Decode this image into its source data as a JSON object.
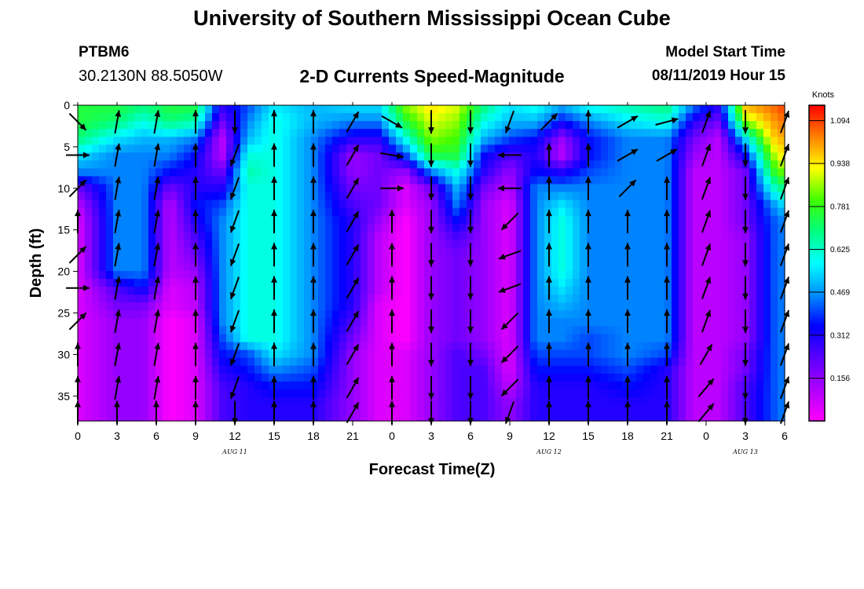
{
  "header": {
    "title": "University of Southern Mississippi Ocean Cube",
    "station_id": "PTBM6",
    "station_coords": "30.2130N 88.5050W",
    "start_label": "Model Start Time",
    "start_value": "08/11/2019 Hour 15"
  },
  "footer": {
    "title": "University of Southern Mississippi Ocean Cube"
  },
  "chart_data": {
    "type": "heatmap",
    "title": "2-D Currents Speed-Magnitude",
    "xlabel": "Forecast Time(Z)",
    "ylabel": "Depth (ft)",
    "x_ticks": [
      "0",
      "3",
      "6",
      "9",
      "12",
      "15",
      "18",
      "21",
      "0",
      "3",
      "6",
      "9",
      "12",
      "15",
      "18",
      "21",
      "0",
      "3",
      "6"
    ],
    "x_tick_hours": [
      0,
      3,
      6,
      9,
      12,
      15,
      18,
      21,
      24,
      27,
      30,
      33,
      36,
      39,
      42,
      45,
      48,
      51,
      54
    ],
    "date_labels": [
      {
        "text": "AUG 11",
        "hour": 12
      },
      {
        "text": "AUG 12",
        "hour": 36
      },
      {
        "text": "AUG 13",
        "hour": 51
      }
    ],
    "y_ticks": [
      0,
      5,
      10,
      15,
      20,
      25,
      30,
      35
    ],
    "xlim": [
      0,
      54
    ],
    "ylim": [
      0,
      38
    ],
    "y_inverted": true,
    "colorbar": {
      "unit": "Knots",
      "ticks": [
        "0.156",
        "0.312",
        "0.469",
        "0.625",
        "0.781",
        "0.938",
        "1.094"
      ],
      "tick_values": [
        0.156,
        0.312,
        0.469,
        0.625,
        0.781,
        0.938,
        1.094
      ],
      "range": [
        0,
        1.15
      ],
      "colors": [
        "#ff00ff",
        "#b000ff",
        "#5a00ff",
        "#0000ff",
        "#0090ff",
        "#00ffff",
        "#00ff80",
        "#40ff00",
        "#ffff00",
        "#ff8000",
        "#ff0000"
      ]
    },
    "depth_rows": [
      0,
      2,
      4,
      6,
      8,
      10,
      12,
      14,
      16,
      18,
      20,
      22,
      24,
      26,
      28,
      30,
      32,
      34,
      36,
      38
    ],
    "speed_columns": [
      {
        "hour": 0,
        "speed": [
          0.75,
          0.75,
          0.7,
          0.55,
          0.45,
          0.2,
          0.1,
          0.05,
          0.05,
          0.05,
          0.05,
          0.05,
          0.05,
          0.05,
          0.05,
          0.05,
          0.05,
          0.05,
          0.05,
          0.05
        ]
      },
      {
        "hour": 3,
        "speed": [
          0.75,
          0.7,
          0.55,
          0.45,
          0.45,
          0.45,
          0.45,
          0.45,
          0.45,
          0.45,
          0.45,
          0.25,
          0.2,
          0.15,
          0.15,
          0.15,
          0.15,
          0.15,
          0.15,
          0.15
        ]
      },
      {
        "hour": 5,
        "speed": [
          0.7,
          0.6,
          0.5,
          0.45,
          0.45,
          0.45,
          0.45,
          0.45,
          0.45,
          0.45,
          0.45,
          0.35,
          0.2,
          0.15,
          0.15,
          0.15,
          0.15,
          0.15,
          0.15,
          0.15
        ]
      },
      {
        "hour": 7,
        "speed": [
          0.75,
          0.7,
          0.5,
          0.45,
          0.35,
          0.2,
          0.1,
          0.1,
          0.1,
          0.1,
          0.1,
          0.05,
          0.05,
          0.0,
          0.0,
          0.0,
          0.0,
          0.0,
          0.0,
          0.0
        ]
      },
      {
        "hour": 9,
        "speed": [
          0.75,
          0.65,
          0.45,
          0.35,
          0.3,
          0.3,
          0.35,
          0.3,
          0.25,
          0.2,
          0.15,
          0.1,
          0.1,
          0.05,
          0.05,
          0.05,
          0.05,
          0.05,
          0.05,
          0.05
        ]
      },
      {
        "hour": 11,
        "speed": [
          0.3,
          0.2,
          0.1,
          0.1,
          0.2,
          0.3,
          0.4,
          0.45,
          0.45,
          0.45,
          0.45,
          0.45,
          0.45,
          0.45,
          0.4,
          0.35,
          0.3,
          0.25,
          0.25,
          0.25
        ]
      },
      {
        "hour": 13,
        "speed": [
          0.4,
          0.45,
          0.5,
          0.6,
          0.65,
          0.6,
          0.6,
          0.6,
          0.6,
          0.6,
          0.6,
          0.6,
          0.6,
          0.6,
          0.6,
          0.4,
          0.35,
          0.3,
          0.3,
          0.3
        ]
      },
      {
        "hour": 15,
        "speed": [
          0.55,
          0.6,
          0.6,
          0.6,
          0.6,
          0.6,
          0.6,
          0.6,
          0.6,
          0.6,
          0.6,
          0.6,
          0.6,
          0.6,
          0.6,
          0.55,
          0.45,
          0.35,
          0.3,
          0.3
        ]
      },
      {
        "hour": 18,
        "speed": [
          0.5,
          0.5,
          0.45,
          0.45,
          0.45,
          0.45,
          0.45,
          0.45,
          0.45,
          0.45,
          0.45,
          0.45,
          0.45,
          0.45,
          0.45,
          0.45,
          0.4,
          0.35,
          0.3,
          0.3
        ]
      },
      {
        "hour": 21,
        "speed": [
          0.55,
          0.45,
          0.3,
          0.15,
          0.15,
          0.2,
          0.25,
          0.3,
          0.3,
          0.3,
          0.3,
          0.3,
          0.3,
          0.25,
          0.2,
          0.15,
          0.15,
          0.15,
          0.15,
          0.15
        ]
      },
      {
        "hour": 23,
        "speed": [
          0.55,
          0.45,
          0.3,
          0.2,
          0.2,
          0.2,
          0.2,
          0.15,
          0.1,
          0.1,
          0.1,
          0.1,
          0.05,
          0.05,
          0.05,
          0.05,
          0.05,
          0.05,
          0.05,
          0.05
        ]
      },
      {
        "hour": 25,
        "speed": [
          0.85,
          0.75,
          0.6,
          0.4,
          0.15,
          0.05,
          0.05,
          0.0,
          0.0,
          0.0,
          0.0,
          0.0,
          0.0,
          0.0,
          0.0,
          0.05,
          0.05,
          0.05,
          0.05,
          0.05
        ]
      },
      {
        "hour": 27,
        "speed": [
          0.95,
          0.9,
          0.85,
          0.75,
          0.45,
          0.2,
          0.15,
          0.15,
          0.15,
          0.15,
          0.15,
          0.15,
          0.15,
          0.15,
          0.15,
          0.15,
          0.15,
          0.15,
          0.15,
          0.15
        ]
      },
      {
        "hour": 29,
        "speed": [
          0.9,
          0.85,
          0.8,
          0.75,
          0.6,
          0.5,
          0.45,
          0.35,
          0.25,
          0.2,
          0.2,
          0.2,
          0.2,
          0.2,
          0.2,
          0.25,
          0.25,
          0.25,
          0.25,
          0.25
        ]
      },
      {
        "hour": 31,
        "speed": [
          0.7,
          0.6,
          0.5,
          0.35,
          0.3,
          0.2,
          0.15,
          0.15,
          0.15,
          0.15,
          0.15,
          0.15,
          0.15,
          0.15,
          0.15,
          0.2,
          0.25,
          0.25,
          0.25,
          0.25
        ]
      },
      {
        "hour": 33,
        "speed": [
          0.55,
          0.5,
          0.4,
          0.25,
          0.15,
          0.1,
          0.05,
          0.05,
          0.05,
          0.05,
          0.05,
          0.05,
          0.05,
          0.05,
          0.05,
          0.05,
          0.05,
          0.1,
          0.15,
          0.15
        ]
      },
      {
        "hour": 35,
        "speed": [
          0.6,
          0.5,
          0.35,
          0.3,
          0.35,
          0.45,
          0.45,
          0.45,
          0.45,
          0.45,
          0.45,
          0.45,
          0.45,
          0.45,
          0.45,
          0.4,
          0.35,
          0.3,
          0.3,
          0.3
        ]
      },
      {
        "hour": 37,
        "speed": [
          0.5,
          0.35,
          0.15,
          0.1,
          0.3,
          0.45,
          0.55,
          0.6,
          0.6,
          0.6,
          0.6,
          0.55,
          0.5,
          0.45,
          0.45,
          0.4,
          0.35,
          0.3,
          0.3,
          0.3
        ]
      },
      {
        "hour": 39,
        "speed": [
          0.6,
          0.45,
          0.35,
          0.35,
          0.4,
          0.45,
          0.45,
          0.45,
          0.45,
          0.45,
          0.45,
          0.45,
          0.45,
          0.45,
          0.4,
          0.4,
          0.35,
          0.3,
          0.3,
          0.3
        ]
      },
      {
        "hour": 42,
        "speed": [
          0.65,
          0.55,
          0.45,
          0.45,
          0.45,
          0.45,
          0.45,
          0.45,
          0.45,
          0.45,
          0.45,
          0.45,
          0.45,
          0.45,
          0.45,
          0.45,
          0.4,
          0.35,
          0.3,
          0.3
        ]
      },
      {
        "hour": 45,
        "speed": [
          0.7,
          0.6,
          0.45,
          0.45,
          0.45,
          0.45,
          0.45,
          0.45,
          0.45,
          0.45,
          0.45,
          0.45,
          0.45,
          0.45,
          0.45,
          0.4,
          0.3,
          0.3,
          0.3,
          0.3
        ]
      },
      {
        "hour": 47,
        "speed": [
          0.45,
          0.3,
          0.2,
          0.15,
          0.1,
          0.1,
          0.1,
          0.1,
          0.1,
          0.1,
          0.1,
          0.1,
          0.1,
          0.1,
          0.1,
          0.1,
          0.1,
          0.1,
          0.1,
          0.1
        ]
      },
      {
        "hour": 49,
        "speed": [
          0.3,
          0.2,
          0.1,
          0.1,
          0.1,
          0.1,
          0.1,
          0.1,
          0.1,
          0.1,
          0.1,
          0.1,
          0.1,
          0.1,
          0.1,
          0.1,
          0.1,
          0.1,
          0.1,
          0.1
        ]
      },
      {
        "hour": 51,
        "speed": [
          1.0,
          0.85,
          0.55,
          0.35,
          0.2,
          0.2,
          0.2,
          0.2,
          0.15,
          0.15,
          0.15,
          0.15,
          0.15,
          0.15,
          0.15,
          0.2,
          0.2,
          0.25,
          0.25,
          0.25
        ]
      },
      {
        "hour": 53,
        "speed": [
          1.05,
          1.0,
          0.95,
          0.85,
          0.75,
          0.6,
          0.45,
          0.4,
          0.4,
          0.4,
          0.4,
          0.4,
          0.4,
          0.4,
          0.4,
          0.4,
          0.4,
          0.4,
          0.4,
          0.4
        ]
      },
      {
        "hour": 54,
        "speed": [
          1.1,
          1.05,
          1.0,
          0.95,
          0.85,
          0.7,
          0.55,
          0.45,
          0.45,
          0.45,
          0.45,
          0.45,
          0.45,
          0.45,
          0.45,
          0.45,
          0.45,
          0.45,
          0.45,
          0.45
        ]
      }
    ],
    "vector_hours": [
      0,
      3,
      6,
      9,
      12,
      15,
      18,
      21,
      24,
      27,
      30,
      33,
      36,
      39,
      42,
      45,
      48,
      51,
      54
    ],
    "vector_depths": [
      2,
      6,
      10,
      14,
      18,
      22,
      26,
      30,
      34,
      37
    ],
    "vector_direction_deg": [
      [
        135,
        90,
        45,
        0,
        45,
        90,
        45,
        0,
        0,
        0
      ],
      [
        10,
        10,
        10,
        10,
        10,
        10,
        10,
        10,
        10,
        0
      ],
      [
        10,
        10,
        10,
        10,
        10,
        10,
        10,
        10,
        10,
        0
      ],
      [
        0,
        0,
        0,
        0,
        0,
        0,
        0,
        0,
        0,
        0
      ],
      [
        180,
        200,
        200,
        200,
        200,
        200,
        200,
        200,
        200,
        180
      ],
      [
        0,
        0,
        0,
        0,
        0,
        0,
        0,
        0,
        0,
        0
      ],
      [
        0,
        0,
        0,
        0,
        0,
        0,
        0,
        0,
        0,
        0
      ],
      [
        30,
        30,
        30,
        30,
        30,
        30,
        30,
        30,
        30,
        30
      ],
      [
        120,
        100,
        90,
        0,
        0,
        0,
        0,
        0,
        0,
        0
      ],
      [
        180,
        180,
        180,
        180,
        180,
        180,
        180,
        180,
        180,
        180
      ],
      [
        180,
        180,
        180,
        180,
        180,
        180,
        180,
        180,
        180,
        180
      ],
      [
        200,
        270,
        270,
        225,
        250,
        250,
        225,
        225,
        225,
        200
      ],
      [
        45,
        0,
        0,
        0,
        0,
        0,
        0,
        0,
        0,
        0
      ],
      [
        0,
        0,
        0,
        0,
        0,
        0,
        0,
        0,
        0,
        0
      ],
      [
        60,
        60,
        45,
        0,
        0,
        0,
        0,
        0,
        0,
        0
      ],
      [
        75,
        60,
        0,
        0,
        0,
        0,
        0,
        0,
        0,
        0
      ],
      [
        20,
        20,
        20,
        20,
        20,
        20,
        20,
        30,
        40,
        40
      ],
      [
        180,
        180,
        180,
        180,
        180,
        180,
        180,
        180,
        180,
        180
      ],
      [
        20,
        20,
        20,
        20,
        20,
        20,
        20,
        20,
        20,
        20
      ]
    ]
  }
}
